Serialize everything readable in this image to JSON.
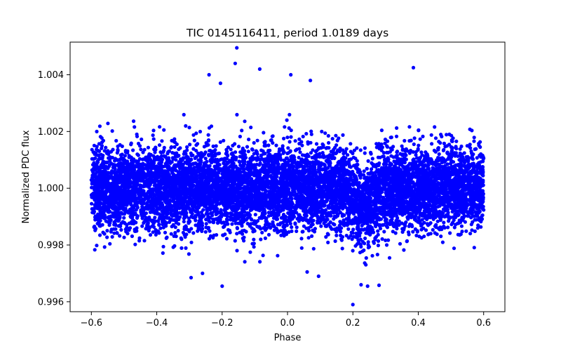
{
  "chart_data": {
    "type": "scatter",
    "title": "TIC 0145116411, period 1.0189 days",
    "xlabel": "Phase",
    "ylabel": "Normalized PDC flux",
    "xlim": [
      -0.665,
      0.665
    ],
    "ylim": [
      0.99565,
      1.00515
    ],
    "xticks": [
      -0.6,
      -0.4,
      -0.2,
      0.0,
      0.2,
      0.4,
      0.6
    ],
    "xtick_labels": [
      "−0.6",
      "−0.4",
      "−0.2",
      "0.0",
      "0.2",
      "0.4",
      "0.6"
    ],
    "yticks": [
      0.996,
      0.998,
      1.0,
      1.002,
      1.004
    ],
    "ytick_labels": [
      "0.996",
      "0.998",
      "1.000",
      "1.002",
      "1.004"
    ],
    "grid": false,
    "series": [
      {
        "name": "flux",
        "color": "#0000ff",
        "marker": "circle",
        "phase_range": [
          -0.6,
          0.6
        ],
        "baseline": 1.0,
        "scatter_sigma": 0.00072,
        "transit": {
          "center": 0.23,
          "half_width": 0.05,
          "depth": 0.00075
        },
        "approx_points": 9000,
        "outliers": [
          [
            -0.155,
            1.00495
          ],
          [
            -0.16,
            1.0044
          ],
          [
            -0.085,
            1.0042
          ],
          [
            0.385,
            1.00425
          ],
          [
            0.01,
            1.004
          ],
          [
            -0.24,
            1.004
          ],
          [
            0.07,
            1.0038
          ],
          [
            -0.205,
            1.0037
          ],
          [
            0.2,
            0.9959
          ],
          [
            -0.2,
            0.99655
          ],
          [
            0.225,
            0.9966
          ],
          [
            0.245,
            0.99655
          ],
          [
            0.28,
            0.99658
          ],
          [
            -0.295,
            0.99685
          ],
          [
            -0.26,
            0.997
          ],
          [
            0.06,
            0.99705
          ],
          [
            0.095,
            0.9969
          ]
        ]
      }
    ]
  }
}
